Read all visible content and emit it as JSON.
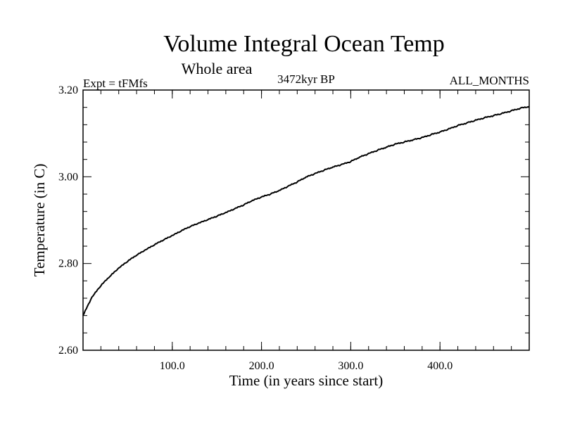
{
  "chart_data": {
    "type": "line",
    "title": "Volume Integral Ocean Temp",
    "subtitle": "Whole area",
    "experiment_label": "Expt = tFMfs",
    "period_label": "3472kyr BP",
    "months_label": "ALL_MONTHS",
    "xlabel": "Time (in years since start)",
    "ylabel": "Temperature (in C)",
    "xlim": [
      0,
      500
    ],
    "ylim": [
      2.6,
      3.2
    ],
    "x_ticks": [
      100,
      200,
      300,
      400
    ],
    "x_tick_labels": [
      "100.0",
      "200.0",
      "300.0",
      "400.0"
    ],
    "y_ticks": [
      2.6,
      2.8,
      3.0,
      3.2
    ],
    "y_tick_labels": [
      "2.60",
      "2.80",
      "3.00",
      "3.20"
    ],
    "series": [
      {
        "name": "Volume integral ocean temperature",
        "color": "#000000",
        "x": [
          0,
          10,
          20,
          30,
          40,
          50,
          60,
          70,
          80,
          90,
          100,
          110,
          120,
          130,
          140,
          150,
          160,
          170,
          180,
          190,
          200,
          210,
          220,
          230,
          240,
          250,
          260,
          270,
          280,
          290,
          300,
          310,
          320,
          330,
          340,
          350,
          360,
          370,
          380,
          390,
          400,
          410,
          420,
          430,
          440,
          450,
          460,
          470,
          480,
          490,
          500
        ],
        "y": [
          2.68,
          2.722,
          2.749,
          2.77,
          2.789,
          2.805,
          2.819,
          2.831,
          2.843,
          2.854,
          2.864,
          2.875,
          2.885,
          2.893,
          2.901,
          2.909,
          2.917,
          2.926,
          2.935,
          2.945,
          2.953,
          2.96,
          2.968,
          2.978,
          2.988,
          2.999,
          3.007,
          3.015,
          3.022,
          3.028,
          3.035,
          3.045,
          3.053,
          3.061,
          3.068,
          3.075,
          3.08,
          3.085,
          3.09,
          3.097,
          3.103,
          3.11,
          3.118,
          3.124,
          3.13,
          3.136,
          3.141,
          3.146,
          3.152,
          3.158,
          3.162
        ]
      }
    ]
  }
}
